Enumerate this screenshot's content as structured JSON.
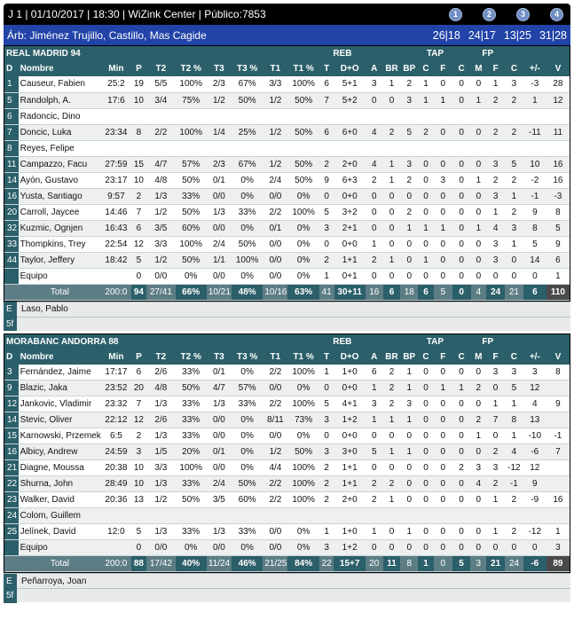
{
  "header": {
    "title": "J 1 | 01/10/2017 | 18:30 | WiZink Center | Público:7853",
    "quarter_buttons": [
      "1",
      "2",
      "3",
      "4"
    ],
    "referees": "Árb: Jiménez Trujillo, Castillo, Mas Cagide",
    "quarter_scores": [
      "26|18",
      "24|17",
      "13|25",
      "31|28"
    ]
  },
  "columns": {
    "group_reb": "REB",
    "group_tap": "TAP",
    "group_fp": "FP",
    "headers": [
      "D",
      "Nombre",
      "Min",
      "P",
      "T2",
      "T2 %",
      "T3",
      "T3 %",
      "T1",
      "T1 %",
      "T",
      "D+O",
      "A",
      "BR",
      "BP",
      "C",
      "F",
      "C",
      "M",
      "F",
      "C",
      "+/-",
      "V"
    ]
  },
  "teams": [
    {
      "name": "REAL MADRID 94",
      "players": [
        {
          "d": "1",
          "name": "Causeur, Fabien",
          "cells": [
            "25:2",
            "19",
            "5/5",
            "100%",
            "2/3",
            "67%",
            "3/3",
            "100%",
            "6",
            "5+1",
            "3",
            "1",
            "2",
            "1",
            "0",
            "0",
            "0",
            "1",
            "3",
            "-3",
            "28"
          ]
        },
        {
          "d": "5",
          "name": "Randolph, A.",
          "cells": [
            "17:6",
            "10",
            "3/4",
            "75%",
            "1/2",
            "50%",
            "1/2",
            "50%",
            "7",
            "5+2",
            "0",
            "0",
            "3",
            "1",
            "1",
            "0",
            "1",
            "2",
            "2",
            "1",
            "12"
          ]
        },
        {
          "d": "6",
          "name": "Radoncic, Dino",
          "cells": [
            "",
            "",
            "",
            "",
            "",
            "",
            "",
            "",
            "",
            "",
            "",
            "",
            "",
            "",
            "",
            "",
            "",
            "",
            "",
            "",
            ""
          ]
        },
        {
          "d": "7",
          "name": "Doncic, Luka",
          "cells": [
            "23:34",
            "8",
            "2/2",
            "100%",
            "1/4",
            "25%",
            "1/2",
            "50%",
            "6",
            "6+0",
            "4",
            "2",
            "5",
            "2",
            "0",
            "0",
            "0",
            "2",
            "2",
            "-11",
            "11"
          ]
        },
        {
          "d": "8",
          "name": "Reyes, Felipe",
          "cells": [
            "",
            "",
            "",
            "",
            "",
            "",
            "",
            "",
            "",
            "",
            "",
            "",
            "",
            "",
            "",
            "",
            "",
            "",
            "",
            "",
            ""
          ]
        },
        {
          "d": "11",
          "name": "Campazzo, Facu",
          "cells": [
            "27:59",
            "15",
            "4/7",
            "57%",
            "2/3",
            "67%",
            "1/2",
            "50%",
            "2",
            "2+0",
            "4",
            "1",
            "3",
            "0",
            "0",
            "0",
            "0",
            "3",
            "5",
            "10",
            "16"
          ]
        },
        {
          "d": "14",
          "name": "Ayón, Gustavo",
          "cells": [
            "23:17",
            "10",
            "4/8",
            "50%",
            "0/1",
            "0%",
            "2/4",
            "50%",
            "9",
            "6+3",
            "2",
            "1",
            "2",
            "0",
            "3",
            "0",
            "1",
            "2",
            "2",
            "-2",
            "16"
          ]
        },
        {
          "d": "16",
          "name": "Yusta, Santiago",
          "cells": [
            "9:57",
            "2",
            "1/3",
            "33%",
            "0/0",
            "0%",
            "0/0",
            "0%",
            "0",
            "0+0",
            "0",
            "0",
            "0",
            "0",
            "0",
            "0",
            "0",
            "3",
            "1",
            "-1",
            "-3"
          ]
        },
        {
          "d": "20",
          "name": "Carroll, Jaycee",
          "cells": [
            "14:46",
            "7",
            "1/2",
            "50%",
            "1/3",
            "33%",
            "2/2",
            "100%",
            "5",
            "3+2",
            "0",
            "0",
            "2",
            "0",
            "0",
            "0",
            "0",
            "1",
            "2",
            "9",
            "8"
          ]
        },
        {
          "d": "32",
          "name": "Kuzmic, Ognjen",
          "cells": [
            "16:43",
            "6",
            "3/5",
            "60%",
            "0/0",
            "0%",
            "0/1",
            "0%",
            "3",
            "2+1",
            "0",
            "0",
            "1",
            "1",
            "1",
            "0",
            "1",
            "4",
            "3",
            "8",
            "5"
          ]
        },
        {
          "d": "33",
          "name": "Thompkins, Trey",
          "cells": [
            "22:54",
            "12",
            "3/3",
            "100%",
            "2/4",
            "50%",
            "0/0",
            "0%",
            "0",
            "0+0",
            "1",
            "0",
            "0",
            "0",
            "0",
            "0",
            "0",
            "3",
            "1",
            "5",
            "9"
          ]
        },
        {
          "d": "44",
          "name": "Taylor, Jeffery",
          "cells": [
            "18:42",
            "5",
            "1/2",
            "50%",
            "1/1",
            "100%",
            "0/0",
            "0%",
            "2",
            "1+1",
            "2",
            "1",
            "0",
            "1",
            "0",
            "0",
            "0",
            "3",
            "0",
            "14",
            "6"
          ]
        },
        {
          "d": "",
          "name": "Equipo",
          "cells": [
            "",
            "0",
            "0/0",
            "0%",
            "0/0",
            "0%",
            "0/0",
            "0%",
            "1",
            "0+1",
            "0",
            "0",
            "0",
            "0",
            "0",
            "0",
            "0",
            "0",
            "0",
            "0",
            "1"
          ]
        }
      ],
      "total": {
        "label": "Total",
        "cells": [
          "200:0",
          "94",
          "27/41",
          "66%",
          "10/21",
          "48%",
          "10/16",
          "63%",
          "41",
          "30+11",
          "16",
          "6",
          "18",
          "6",
          "5",
          "0",
          "4",
          "24",
          "21",
          "6",
          "110"
        ]
      },
      "coach_label": "E",
      "coach": "Laso, Pablo",
      "five_label": "5f"
    },
    {
      "name": "MORABANC ANDORRA 88",
      "players": [
        {
          "d": "3",
          "name": "Fernández, Jaime",
          "cells": [
            "17:17",
            "6",
            "2/6",
            "33%",
            "0/1",
            "0%",
            "2/2",
            "100%",
            "1",
            "1+0",
            "6",
            "2",
            "1",
            "0",
            "0",
            "0",
            "0",
            "3",
            "3",
            "3",
            "8"
          ]
        },
        {
          "d": "9",
          "name": "Blazic, Jaka",
          "cells": [
            "23:52",
            "20",
            "4/8",
            "50%",
            "4/7",
            "57%",
            "0/0",
            "0%",
            "0",
            "0+0",
            "1",
            "2",
            "1",
            "0",
            "1",
            "1",
            "2",
            "0",
            "5",
            "12",
            ""
          ]
        },
        {
          "d": "12",
          "name": "Jankovic, Vladimir",
          "cells": [
            "23:32",
            "7",
            "1/3",
            "33%",
            "1/3",
            "33%",
            "2/2",
            "100%",
            "5",
            "4+1",
            "3",
            "2",
            "3",
            "0",
            "0",
            "0",
            "0",
            "1",
            "1",
            "4",
            "9"
          ]
        },
        {
          "d": "14",
          "name": "Stevic, Oliver",
          "cells": [
            "22:12",
            "12",
            "2/6",
            "33%",
            "0/0",
            "0%",
            "8/11",
            "73%",
            "3",
            "1+2",
            "1",
            "1",
            "1",
            "0",
            "0",
            "0",
            "2",
            "7",
            "8",
            "13",
            ""
          ]
        },
        {
          "d": "15",
          "name": "Karnowski, Przemek",
          "cells": [
            "6:5",
            "2",
            "1/3",
            "33%",
            "0/0",
            "0%",
            "0/0",
            "0%",
            "0",
            "0+0",
            "0",
            "0",
            "0",
            "0",
            "0",
            "0",
            "1",
            "0",
            "1",
            "-10",
            "-1"
          ]
        },
        {
          "d": "16",
          "name": "Albicy, Andrew",
          "cells": [
            "24:59",
            "3",
            "1/5",
            "20%",
            "0/1",
            "0%",
            "1/2",
            "50%",
            "3",
            "3+0",
            "5",
            "1",
            "1",
            "0",
            "0",
            "0",
            "0",
            "2",
            "4",
            "-6",
            "7"
          ]
        },
        {
          "d": "21",
          "name": "Diagne, Moussa",
          "cells": [
            "20:38",
            "10",
            "3/3",
            "100%",
            "0/0",
            "0%",
            "4/4",
            "100%",
            "2",
            "1+1",
            "0",
            "0",
            "0",
            "0",
            "0",
            "2",
            "3",
            "3",
            "-12",
            "12",
            ""
          ]
        },
        {
          "d": "22",
          "name": "Shurna, John",
          "cells": [
            "28:49",
            "10",
            "1/3",
            "33%",
            "2/4",
            "50%",
            "2/2",
            "100%",
            "2",
            "1+1",
            "2",
            "2",
            "0",
            "0",
            "0",
            "0",
            "4",
            "2",
            "-1",
            "9",
            ""
          ]
        },
        {
          "d": "23",
          "name": "Walker, David",
          "cells": [
            "20:36",
            "13",
            "1/2",
            "50%",
            "3/5",
            "60%",
            "2/2",
            "100%",
            "2",
            "2+0",
            "2",
            "1",
            "0",
            "0",
            "0",
            "0",
            "0",
            "1",
            "2",
            "-9",
            "16"
          ]
        },
        {
          "d": "24",
          "name": "Colom, Guillem",
          "cells": [
            "",
            "",
            "",
            "",
            "",
            "",
            "",
            "",
            "",
            "",
            "",
            "",
            "",
            "",
            "",
            "",
            "",
            "",
            "",
            "",
            ""
          ]
        },
        {
          "d": "25",
          "name": "Jelínek, David",
          "cells": [
            "12:0",
            "5",
            "1/3",
            "33%",
            "1/3",
            "33%",
            "0/0",
            "0%",
            "1",
            "1+0",
            "1",
            "0",
            "1",
            "0",
            "0",
            "0",
            "0",
            "1",
            "2",
            "-12",
            "1"
          ]
        },
        {
          "d": "",
          "name": "Equipo",
          "cells": [
            "",
            "0",
            "0/0",
            "0%",
            "0/0",
            "0%",
            "0/0",
            "0%",
            "3",
            "1+2",
            "0",
            "0",
            "0",
            "0",
            "0",
            "0",
            "0",
            "0",
            "0",
            "0",
            "3"
          ]
        }
      ],
      "total": {
        "label": "Total",
        "cells": [
          "200:0",
          "88",
          "17/42",
          "40%",
          "11/24",
          "46%",
          "21/25",
          "84%",
          "22",
          "15+7",
          "20",
          "11",
          "8",
          "1",
          "0",
          "5",
          "3",
          "21",
          "24",
          "-6",
          "89"
        ]
      },
      "coach_label": "E",
      "coach": "Peñarroya, Joan",
      "five_label": "5f"
    }
  ]
}
